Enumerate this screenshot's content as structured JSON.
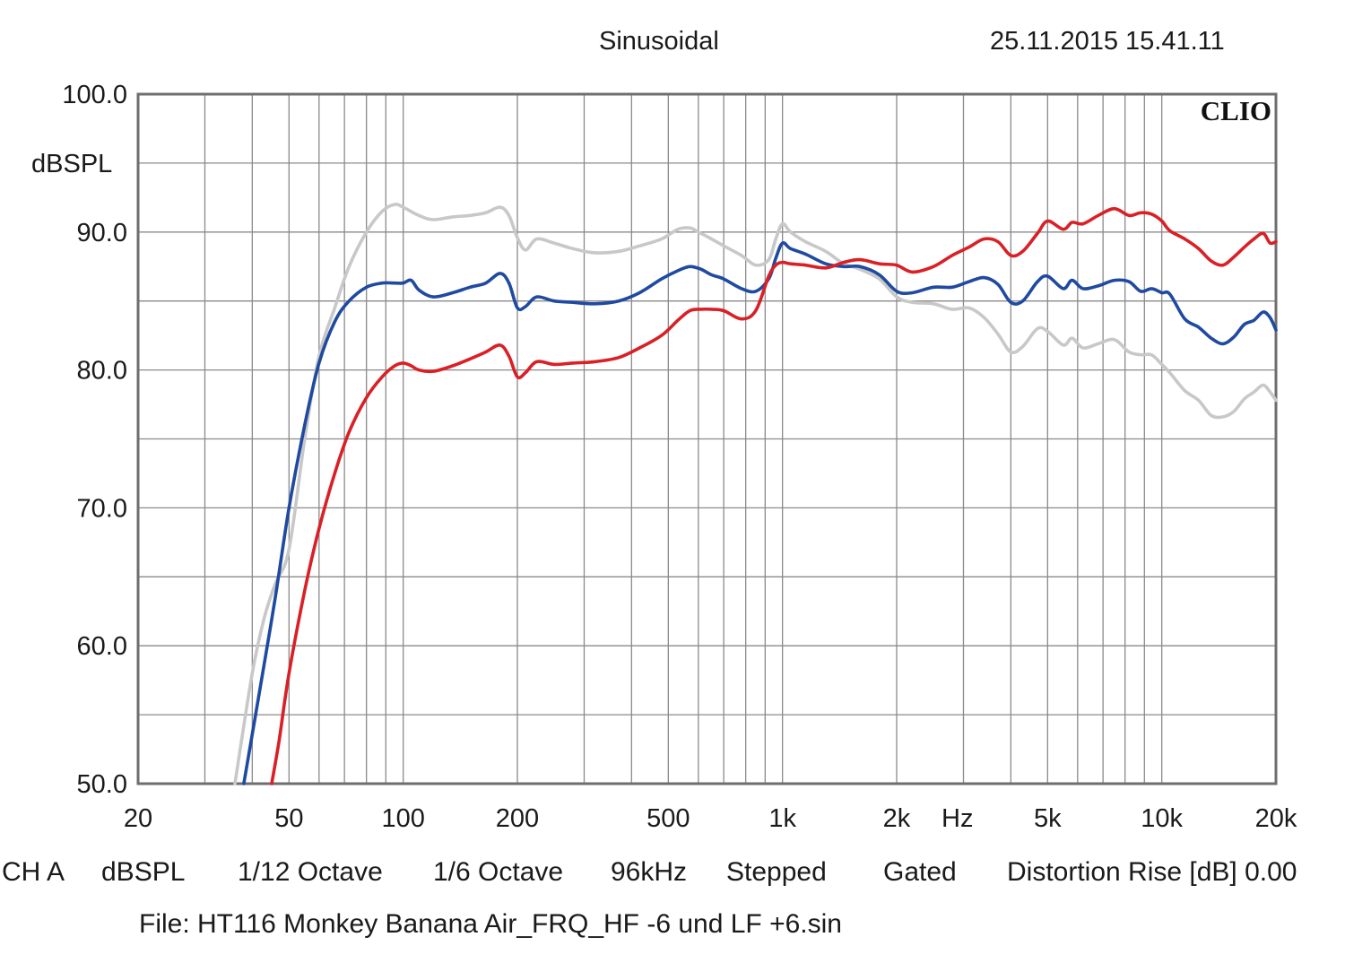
{
  "header": {
    "mode": "Sinusoidal",
    "timestamp": "25.11.2015 15.41.11"
  },
  "brand": "CLIO",
  "footer": {
    "channel": "CH A",
    "unit": "dBSPL",
    "resolution": "1/12 Octave",
    "smoothing": "1/6 Octave",
    "sample_rate": "96kHz",
    "sweep": "Stepped",
    "window": "Gated",
    "distortion": "Distortion Rise [dB] 0.00",
    "file": "File: HT116 Monkey Banana Air_FRQ_HF -6 und LF +6.sin"
  },
  "chart_data": {
    "type": "line",
    "title": "",
    "xlabel": "Hz",
    "ylabel": "dBSPL",
    "x_scale": "log",
    "xlim": [
      20,
      20000
    ],
    "ylim": [
      50,
      100
    ],
    "grid": true,
    "x_ticks": [
      {
        "value": 20,
        "label": "20"
      },
      {
        "value": 50,
        "label": "50"
      },
      {
        "value": 100,
        "label": "100"
      },
      {
        "value": 200,
        "label": "200"
      },
      {
        "value": 500,
        "label": "500"
      },
      {
        "value": 1000,
        "label": "1k"
      },
      {
        "value": 2000,
        "label": "2k"
      },
      {
        "value": 5000,
        "label": "5k"
      },
      {
        "value": 10000,
        "label": "10k"
      },
      {
        "value": 20000,
        "label": "20k"
      }
    ],
    "y_ticks": [
      {
        "value": 100,
        "label": "100.0"
      },
      {
        "value": 90,
        "label": "90.0"
      },
      {
        "value": 80,
        "label": "80.0"
      },
      {
        "value": 70,
        "label": "70.0"
      },
      {
        "value": 60,
        "label": "60.0"
      },
      {
        "value": 50,
        "label": "50.0"
      }
    ],
    "series": [
      {
        "color": "#c8c8c8",
        "x": [
          36,
          40,
          43,
          46,
          50,
          55,
          60,
          66,
          72,
          80,
          88,
          95,
          100,
          110,
          120,
          135,
          150,
          165,
          180,
          190,
          200,
          210,
          225,
          250,
          280,
          320,
          370,
          420,
          480,
          530,
          570,
          600,
          640,
          700,
          780,
          850,
          920,
          960,
          1000,
          1050,
          1150,
          1300,
          1450,
          1600,
          1800,
          2000,
          2200,
          2500,
          2800,
          3100,
          3400,
          3700,
          4000,
          4300,
          4700,
          5000,
          5500,
          5800,
          6200,
          6800,
          7500,
          8200,
          8800,
          9400,
          10000,
          10500,
          11500,
          12500,
          13500,
          14500,
          15500,
          16500,
          17500,
          18500,
          19300,
          20000
        ],
        "y": [
          50.0,
          58.0,
          62.0,
          64.5,
          67.0,
          75.0,
          81.0,
          84.5,
          87.5,
          90.0,
          91.5,
          92.0,
          91.8,
          91.2,
          90.9,
          91.1,
          91.2,
          91.4,
          91.8,
          91.2,
          89.6,
          88.7,
          89.5,
          89.2,
          88.8,
          88.5,
          88.6,
          89.0,
          89.5,
          90.2,
          90.3,
          90.0,
          89.6,
          89.0,
          88.3,
          87.6,
          88.0,
          89.5,
          90.6,
          90.0,
          89.3,
          88.6,
          87.7,
          87.3,
          86.6,
          85.3,
          84.9,
          84.8,
          84.4,
          84.5,
          83.8,
          82.6,
          81.3,
          81.7,
          83.0,
          82.8,
          81.8,
          82.3,
          81.6,
          81.9,
          82.2,
          81.3,
          81.1,
          81.1,
          80.4,
          79.8,
          78.5,
          77.8,
          76.7,
          76.6,
          77.0,
          77.9,
          78.4,
          78.9,
          78.4,
          77.8
        ]
      },
      {
        "color": "#1f4aa0",
        "x": [
          38,
          42,
          46,
          50,
          55,
          60,
          66,
          72,
          80,
          88,
          95,
          100,
          105,
          110,
          120,
          135,
          150,
          165,
          180,
          190,
          200,
          210,
          225,
          250,
          280,
          320,
          370,
          420,
          480,
          530,
          570,
          610,
          650,
          700,
          780,
          850,
          920,
          960,
          1000,
          1050,
          1150,
          1300,
          1450,
          1600,
          1800,
          2000,
          2200,
          2500,
          2800,
          3100,
          3400,
          3700,
          4000,
          4300,
          4700,
          5000,
          5500,
          5800,
          6200,
          6800,
          7500,
          8200,
          8800,
          9400,
          10000,
          10500,
          11500,
          12500,
          13500,
          14500,
          15500,
          16500,
          17500,
          18500,
          19300,
          20000
        ],
        "y": [
          50.0,
          57.0,
          63.5,
          70.0,
          76.0,
          80.5,
          83.5,
          85.0,
          86.0,
          86.3,
          86.3,
          86.3,
          86.5,
          85.8,
          85.3,
          85.6,
          86.0,
          86.3,
          87.0,
          86.3,
          84.5,
          84.6,
          85.3,
          85.0,
          84.9,
          84.8,
          85.0,
          85.6,
          86.6,
          87.2,
          87.5,
          87.3,
          86.9,
          86.6,
          85.9,
          85.7,
          86.6,
          88.1,
          89.2,
          88.8,
          88.4,
          87.7,
          87.5,
          87.5,
          86.9,
          85.7,
          85.6,
          86.0,
          86.0,
          86.4,
          86.7,
          86.2,
          84.9,
          85.0,
          86.4,
          86.8,
          85.9,
          86.5,
          85.9,
          86.1,
          86.5,
          86.4,
          85.7,
          85.9,
          85.6,
          85.5,
          83.7,
          83.1,
          82.3,
          81.9,
          82.4,
          83.3,
          83.6,
          84.2,
          83.8,
          82.9
        ]
      },
      {
        "color": "#d92026",
        "x": [
          45,
          47,
          50,
          55,
          60,
          66,
          72,
          80,
          88,
          95,
          100,
          105,
          110,
          120,
          135,
          150,
          165,
          180,
          190,
          200,
          210,
          225,
          250,
          280,
          320,
          370,
          420,
          480,
          530,
          570,
          610,
          650,
          700,
          780,
          850,
          920,
          960,
          1000,
          1050,
          1150,
          1300,
          1450,
          1600,
          1800,
          2000,
          2200,
          2500,
          2800,
          3100,
          3400,
          3700,
          4000,
          4300,
          4700,
          5000,
          5500,
          5800,
          6200,
          6800,
          7500,
          8200,
          8800,
          9400,
          10000,
          10500,
          11500,
          12500,
          13500,
          14500,
          15500,
          16500,
          17500,
          18500,
          19300,
          20000
        ],
        "y": [
          50.0,
          53.0,
          58.0,
          64.0,
          68.5,
          72.5,
          75.5,
          78.0,
          79.5,
          80.3,
          80.5,
          80.3,
          80.0,
          79.9,
          80.3,
          80.8,
          81.3,
          81.8,
          81.0,
          79.5,
          79.8,
          80.6,
          80.4,
          80.5,
          80.6,
          80.9,
          81.6,
          82.5,
          83.6,
          84.3,
          84.4,
          84.4,
          84.3,
          83.7,
          84.3,
          86.8,
          87.6,
          87.8,
          87.7,
          87.6,
          87.4,
          87.8,
          88.0,
          87.7,
          87.6,
          87.1,
          87.5,
          88.3,
          88.9,
          89.5,
          89.3,
          88.3,
          88.6,
          89.9,
          90.8,
          90.2,
          90.7,
          90.6,
          91.2,
          91.7,
          91.2,
          91.4,
          91.3,
          90.8,
          90.1,
          89.5,
          88.8,
          87.9,
          87.6,
          88.2,
          88.9,
          89.5,
          89.9,
          89.2,
          89.3
        ]
      }
    ]
  }
}
